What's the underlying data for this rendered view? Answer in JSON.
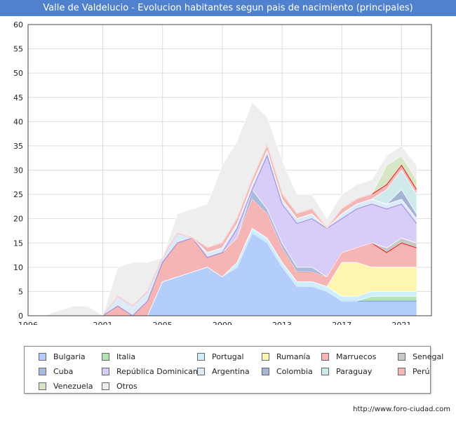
{
  "chart_data": {
    "type": "area",
    "stacked": true,
    "title": "Valle de Valdelucio - Evolucion habitantes segun pais de nacimiento (principales)",
    "x": [
      1996,
      1997,
      1998,
      1999,
      2000,
      2001,
      2002,
      2003,
      2004,
      2005,
      2006,
      2007,
      2008,
      2009,
      2010,
      2011,
      2012,
      2013,
      2014,
      2015,
      2016,
      2017,
      2018,
      2019,
      2020,
      2021,
      2022
    ],
    "xlim": [
      1996,
      2023
    ],
    "ylim": [
      0,
      60
    ],
    "x_ticks": [
      1996,
      2001,
      2005,
      2009,
      2013,
      2017,
      2021
    ],
    "y_ticks": [
      0,
      5,
      10,
      15,
      20,
      25,
      30,
      35,
      40,
      45,
      50,
      55,
      60
    ],
    "grid": true,
    "legend_position": "bottom",
    "series": [
      {
        "name": "Bulgaria",
        "color": "#b3cefb",
        "values": [
          0,
          0,
          0,
          0,
          0,
          0,
          0,
          0,
          0,
          7,
          8,
          9,
          10,
          8,
          10,
          17,
          15,
          10,
          6,
          6,
          5,
          3,
          3,
          3,
          3,
          3,
          3
        ]
      },
      {
        "name": "Italia",
        "color": "#b3e2b3",
        "values": [
          0,
          0,
          0,
          0,
          0,
          0,
          0,
          0,
          0,
          0,
          0,
          0,
          0,
          0,
          0,
          0,
          0,
          0,
          0,
          0,
          0,
          0,
          0,
          1,
          1,
          1,
          1
        ]
      },
      {
        "name": "Portugal",
        "color": "#cdeefd",
        "values": [
          0,
          0,
          0,
          0,
          0,
          0,
          0,
          0,
          0,
          0,
          0,
          0,
          0,
          0,
          1,
          1,
          1,
          1,
          1,
          1,
          1,
          1,
          1,
          1,
          1,
          1,
          1
        ]
      },
      {
        "name": "Rumanía",
        "color": "#fdf5b0",
        "values": [
          0,
          0,
          0,
          0,
          0,
          0,
          0,
          0,
          0,
          0,
          0,
          0,
          0,
          0,
          0,
          0,
          0,
          0,
          0,
          0,
          0,
          7,
          7,
          5,
          5,
          5,
          5
        ]
      },
      {
        "name": "Marruecos",
        "color": "#f6b5b5",
        "values": [
          0,
          0,
          0,
          0,
          0,
          0,
          2,
          0,
          3,
          4,
          7,
          7,
          2,
          5,
          5,
          6,
          5,
          3,
          2,
          2,
          2,
          2,
          3,
          5,
          3,
          5,
          4
        ]
      },
      {
        "name": "Senegal",
        "color": "#c8c8c8",
        "values": [
          0,
          0,
          0,
          0,
          0,
          0,
          0,
          0,
          0,
          0,
          0,
          0,
          0,
          0,
          0,
          0,
          0,
          0,
          0,
          0,
          0,
          0,
          0,
          0,
          1,
          1,
          1
        ]
      },
      {
        "name": "Cuba",
        "color": "#a9bbde",
        "values": [
          0,
          0,
          0,
          0,
          0,
          0,
          0,
          0,
          0,
          0,
          0,
          0,
          0,
          0,
          0,
          2,
          1,
          1,
          1,
          1,
          0,
          0,
          0,
          0,
          0,
          0,
          0
        ]
      },
      {
        "name": "República Dominicana",
        "color": "#d8ccf8",
        "values": [
          0,
          0,
          0,
          0,
          0,
          0,
          0,
          0,
          0,
          0,
          0,
          0,
          0,
          0,
          2,
          0,
          11,
          8,
          9,
          10,
          10,
          7,
          8,
          8,
          8,
          7,
          4
        ]
      },
      {
        "name": "Argentina",
        "color": "#ddeaf8",
        "values": [
          0,
          0,
          0,
          0,
          0,
          0,
          2,
          2,
          2,
          1,
          2,
          0,
          1,
          1,
          1,
          1,
          1,
          1,
          1,
          1,
          0,
          1,
          1,
          1,
          1,
          1,
          1
        ]
      },
      {
        "name": "Colombia",
        "color": "#a4b4d2",
        "values": [
          0,
          0,
          0,
          0,
          0,
          0,
          0,
          0,
          0,
          0,
          0,
          0,
          0,
          0,
          0,
          0,
          0,
          0,
          0,
          0,
          0,
          0,
          0,
          0,
          0,
          2,
          1
        ]
      },
      {
        "name": "Paraguay",
        "color": "#cfeaea",
        "values": [
          0,
          0,
          0,
          0,
          0,
          0,
          0,
          0,
          0,
          0,
          0,
          0,
          0,
          0,
          0,
          0,
          0,
          0,
          0,
          0,
          0,
          0,
          0,
          0,
          3,
          4,
          4
        ]
      },
      {
        "name": "Perú",
        "color": "#f3b7b7",
        "values": [
          0,
          0,
          0,
          0,
          0,
          0,
          0,
          0,
          0,
          0,
          0,
          0,
          1,
          1,
          1,
          1,
          1,
          1,
          1,
          1,
          0,
          1,
          1,
          1,
          1,
          1,
          1
        ]
      },
      {
        "name": "Venezuela",
        "color": "#d6e6c6",
        "values": [
          0,
          0,
          0,
          0,
          0,
          0,
          0,
          0,
          0,
          0,
          0,
          0,
          0,
          0,
          0,
          0,
          0,
          0,
          0,
          0,
          0,
          0,
          0,
          0,
          4,
          2,
          2
        ]
      },
      {
        "name": "Otros",
        "color": "#eeeeee",
        "values": [
          0,
          0,
          1,
          2,
          2,
          0,
          6,
          9,
          6,
          0,
          4,
          6,
          9,
          16,
          16,
          16,
          6,
          7,
          4,
          3,
          2,
          3,
          3,
          3,
          2,
          2,
          3
        ]
      }
    ],
    "boundary_colors": {
      "Marruecos": "#ee1111",
      "Perú": "#ee1111",
      "República Dominicana": "#9b88d9",
      "Bulgaria": "#6f9de8"
    }
  },
  "legend_items": [
    "Bulgaria",
    "Italia",
    "Portugal",
    "Rumanía",
    "Marruecos",
    "Senegal",
    "Cuba",
    "República Dominicana",
    "Argentina",
    "Colombia",
    "Paraguay",
    "Perú",
    "Venezuela",
    "Otros"
  ],
  "legend_colors": [
    "#b3cefb",
    "#b3e2b3",
    "#cdeefd",
    "#fdf5b0",
    "#f6b5b5",
    "#c8c8c8",
    "#a9bbde",
    "#d8ccf8",
    "#ddeaf8",
    "#a4b4d2",
    "#cfeaea",
    "#f3b7b7",
    "#d6e6c6",
    "#eeeeee"
  ],
  "source_url": "http://www.foro-ciudad.com"
}
